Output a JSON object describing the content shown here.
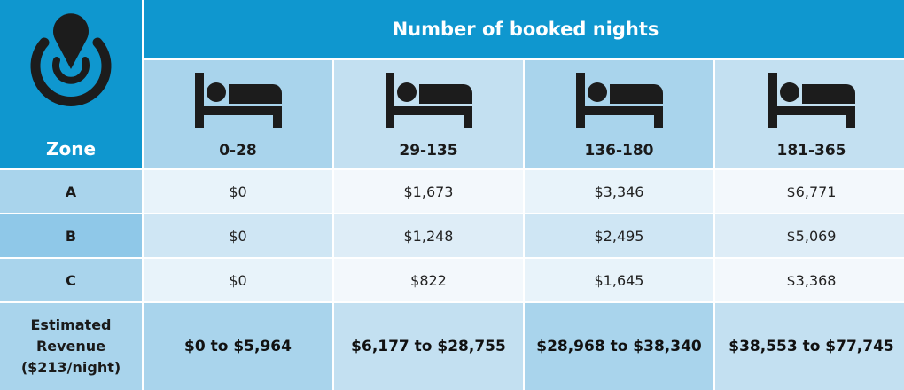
{
  "header": {
    "title": "Number of booked nights",
    "zone_label": "Zone"
  },
  "icons": {
    "logo": "location-pin-power-icon",
    "bed": "bed-icon"
  },
  "columns": [
    "0-28",
    "29-135",
    "136-180",
    "181-365"
  ],
  "rows": [
    {
      "zone": "A",
      "values": [
        "$0",
        "$1,673",
        "$3,346",
        "$6,771"
      ]
    },
    {
      "zone": "B",
      "values": [
        "$0",
        "$1,248",
        "$2,495",
        "$5,069"
      ]
    },
    {
      "zone": "C",
      "values": [
        "$0",
        "$822",
        "$1,645",
        "$3,368"
      ]
    }
  ],
  "estimate": {
    "label_line1": "Estimated",
    "label_line2": "Revenue",
    "label_line3": "($213/night)",
    "values": [
      "$0 to $5,964",
      "$6,177 to $28,755",
      "$28,968 to $38,340",
      "$38,553 to $77,745"
    ]
  },
  "colors": {
    "header_blue": "#0f97cf",
    "icon_dark": "#1c1c1c"
  }
}
